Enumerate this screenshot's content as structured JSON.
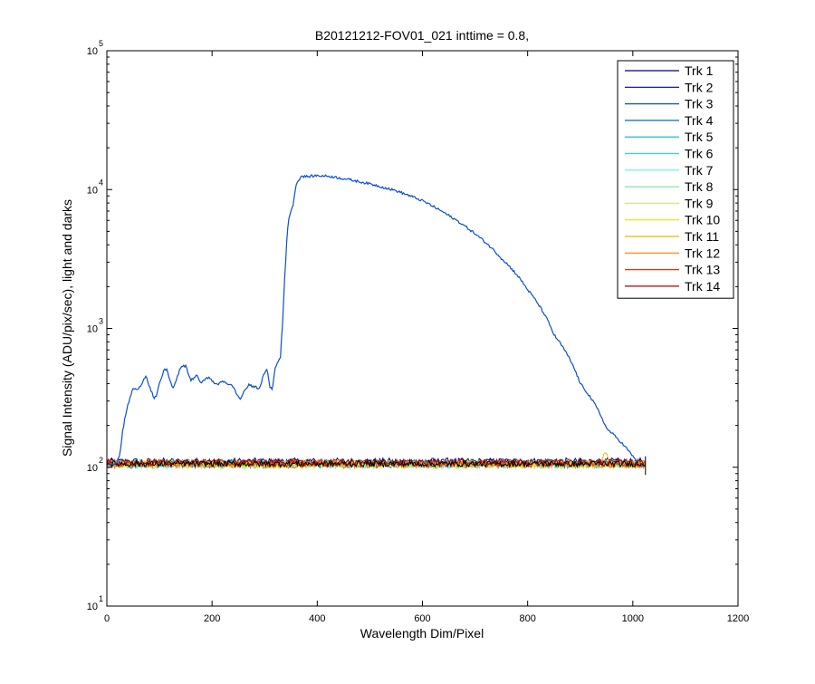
{
  "chart_data": {
    "type": "line",
    "title": "B20121212-FOV01_021 inttime = 0.8,",
    "xlabel": "Wavelength Dim/Pixel",
    "ylabel": "Signal Intensity (ADU/pix/sec), light and darks",
    "xlim": [
      0,
      1200
    ],
    "ylim": [
      10,
      100000
    ],
    "yscale": "log",
    "xticks": [
      "0",
      "200",
      "400",
      "600",
      "800",
      "1000",
      "1200"
    ],
    "yticks": [
      {
        "base": "10",
        "exp": "1",
        "value": 10
      },
      {
        "base": "10",
        "exp": "2",
        "value": 100
      },
      {
        "base": "10",
        "exp": "3",
        "value": 1000
      },
      {
        "base": "10",
        "exp": "4",
        "value": 10000
      },
      {
        "base": "10",
        "exp": "5",
        "value": 100000
      }
    ],
    "grid": false,
    "legend_position": "top-right",
    "series": [
      {
        "name": "Trk 1",
        "color": "#00007f",
        "base": 110,
        "x": [
          0,
          1024
        ],
        "y": [
          110,
          110
        ]
      },
      {
        "name": "Trk 2",
        "color": "#000099",
        "base": 108,
        "x": [
          0,
          1024
        ],
        "y": [
          108,
          108
        ]
      },
      {
        "name": "Trk 3",
        "color": "#0b4fd0",
        "base": 105,
        "x": [
          0,
          15,
          20,
          25,
          30,
          40,
          50,
          60,
          70,
          75,
          80,
          90,
          95,
          100,
          110,
          115,
          120,
          125,
          130,
          140,
          150,
          155,
          160,
          170,
          180,
          190,
          200,
          210,
          220,
          230,
          240,
          250,
          255,
          260,
          270,
          280,
          290,
          300,
          305,
          310,
          315,
          320,
          330,
          335,
          340,
          345,
          350,
          355,
          360,
          370,
          380,
          400,
          420,
          450,
          500,
          550,
          600,
          650,
          700,
          750,
          800,
          850,
          900,
          950,
          1000,
          1010
        ],
        "y": [
          105,
          105,
          110,
          125,
          180,
          280,
          370,
          360,
          430,
          460,
          390,
          310,
          330,
          400,
          510,
          500,
          420,
          370,
          400,
          520,
          540,
          470,
          420,
          460,
          400,
          450,
          420,
          390,
          420,
          400,
          380,
          320,
          310,
          350,
          390,
          380,
          370,
          480,
          500,
          380,
          360,
          520,
          620,
          1200,
          3000,
          6000,
          7000,
          8000,
          11000,
          12500,
          12400,
          12600,
          12500,
          12000,
          11000,
          9800,
          8300,
          6500,
          4800,
          3200,
          1900,
          900,
          400,
          190,
          120,
          108
        ]
      },
      {
        "name": "Trk 4",
        "color": "#006eb8",
        "base": 107,
        "x": [
          0,
          1024
        ],
        "y": [
          107,
          107
        ]
      },
      {
        "name": "Trk 5",
        "color": "#00b4d4",
        "base": 106,
        "x": [
          0,
          1024
        ],
        "y": [
          106,
          106
        ]
      },
      {
        "name": "Trk 6",
        "color": "#22d8f0",
        "base": 105,
        "x": [
          0,
          1024
        ],
        "y": [
          105,
          105
        ]
      },
      {
        "name": "Trk 7",
        "color": "#5ef0e6",
        "base": 104,
        "x": [
          0,
          1024
        ],
        "y": [
          104,
          104
        ]
      },
      {
        "name": "Trk 8",
        "color": "#7fe89a",
        "base": 106,
        "x": [
          0,
          1024
        ],
        "y": [
          106,
          106
        ]
      },
      {
        "name": "Trk 9",
        "color": "#c8f07a",
        "base": 105,
        "x": [
          0,
          1024
        ],
        "y": [
          105,
          105
        ]
      },
      {
        "name": "Trk 10",
        "color": "#e6e600",
        "base": 104,
        "x": [
          0,
          1024
        ],
        "y": [
          104,
          104
        ]
      },
      {
        "name": "Trk 11",
        "color": "#f0b400",
        "base": 106,
        "x": [
          0,
          940,
          945,
          950,
          955,
          1024
        ],
        "y": [
          106,
          107,
          125,
          128,
          107,
          106
        ]
      },
      {
        "name": "Trk 12",
        "color": "#ff7f00",
        "base": 105,
        "x": [
          0,
          1024
        ],
        "y": [
          105,
          105
        ]
      },
      {
        "name": "Trk 13",
        "color": "#e03000",
        "base": 107,
        "x": [
          0,
          1024
        ],
        "y": [
          107,
          107
        ]
      },
      {
        "name": "Trk 14",
        "color": "#b00000",
        "base": 108,
        "x": [
          0,
          1024
        ],
        "y": [
          108,
          108
        ]
      }
    ]
  }
}
